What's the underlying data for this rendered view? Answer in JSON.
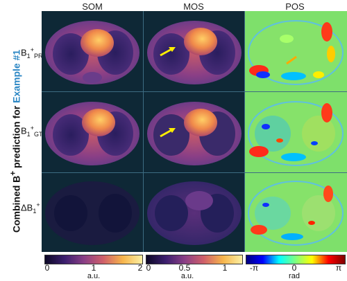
{
  "title": {
    "prefix": "Combined B",
    "sup": "+",
    "middle": " prediction for ",
    "accent": "Example #1"
  },
  "columns": [
    "SOM",
    "MOS",
    "POS"
  ],
  "rows": [
    {
      "base": "B",
      "sub": "1",
      "sup": "+",
      "suffix": "PR"
    },
    {
      "base": "B",
      "sub": "1",
      "sup": "+",
      "suffix": "GT"
    },
    {
      "base": "ΔB",
      "sub": "1",
      "sup": "+",
      "suffix": ""
    }
  ],
  "colorbars": [
    {
      "ticks": [
        "0",
        "1",
        "2"
      ],
      "unit": "a.u."
    },
    {
      "ticks": [
        "0",
        "0.5",
        "1"
      ],
      "unit": "a.u."
    },
    {
      "ticks": [
        "-π",
        "0",
        "π"
      ],
      "unit": "rad"
    }
  ],
  "colors": {
    "background": "#0e2836",
    "pos_background": "#7ee06b",
    "accent": "#2a86c4",
    "arrow": "#ffee00"
  }
}
